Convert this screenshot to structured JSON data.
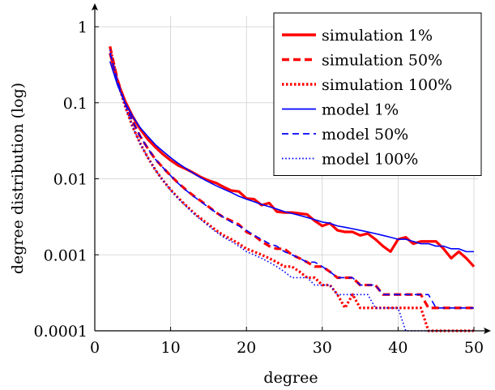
{
  "chart_data": {
    "type": "line",
    "xlabel": "degree",
    "ylabel": "degree distribution (log)",
    "xlim": [
      0,
      51
    ],
    "ylim": [
      0.0001,
      2
    ],
    "yscale": "log",
    "x_ticks": [
      0,
      10,
      20,
      30,
      40,
      50
    ],
    "y_ticks": [
      {
        "value": 1,
        "label": "1"
      },
      {
        "value": 0.1,
        "label": "0.1"
      },
      {
        "value": 0.01,
        "label": "0.01"
      },
      {
        "value": 0.001,
        "label": "0.001"
      },
      {
        "value": 0.0001,
        "label": "0.0001"
      }
    ],
    "grid": true,
    "legend_position": "top-right",
    "series": [
      {
        "name": "simulation 1%",
        "color": "#ff0000",
        "dash": "solid",
        "width": "thick",
        "x": [
          2,
          3,
          4,
          5,
          6,
          7,
          8,
          9,
          10,
          11,
          12,
          13,
          14,
          15,
          16,
          17,
          18,
          19,
          20,
          21,
          22,
          23,
          24,
          25,
          26,
          27,
          28,
          29,
          30,
          31,
          32,
          33,
          34,
          35,
          36,
          37,
          38,
          39,
          40,
          41,
          42,
          43,
          44,
          45,
          46,
          47,
          48,
          49,
          50
        ],
        "y": [
          0.45,
          0.19,
          0.105,
          0.066,
          0.045,
          0.033,
          0.026,
          0.021,
          0.0175,
          0.015,
          0.0135,
          0.012,
          0.0105,
          0.0095,
          0.0088,
          0.0078,
          0.007,
          0.0068,
          0.0055,
          0.0054,
          0.0045,
          0.0048,
          0.0037,
          0.0036,
          0.0036,
          0.0035,
          0.0034,
          0.0028,
          0.0024,
          0.0026,
          0.0021,
          0.002,
          0.002,
          0.0018,
          0.0019,
          0.0016,
          0.0013,
          0.0011,
          0.0016,
          0.0017,
          0.0014,
          0.0015,
          0.0015,
          0.0015,
          0.0012,
          0.0009,
          0.0011,
          0.0009,
          0.0007
        ]
      },
      {
        "name": "simulation 50%",
        "color": "#ff0000",
        "dash": "dashed",
        "width": "thick",
        "x": [
          2,
          3,
          4,
          5,
          6,
          7,
          8,
          9,
          10,
          11,
          12,
          13,
          14,
          15,
          16,
          17,
          18,
          19,
          20,
          21,
          22,
          23,
          24,
          25,
          26,
          27,
          28,
          29,
          30,
          31,
          32,
          33,
          34,
          35,
          36,
          37,
          38,
          39,
          40,
          41,
          42,
          43,
          44,
          45,
          46,
          47,
          48,
          49,
          50
        ],
        "y": [
          0.55,
          0.2,
          0.1,
          0.057,
          0.036,
          0.025,
          0.018,
          0.014,
          0.011,
          0.0088,
          0.0072,
          0.006,
          0.0051,
          0.0043,
          0.0036,
          0.0031,
          0.0028,
          0.0025,
          0.002,
          0.0018,
          0.0015,
          0.0013,
          0.0012,
          0.0012,
          0.001,
          0.0009,
          0.0008,
          0.0007,
          0.0007,
          0.0006,
          0.0005,
          0.0005,
          0.0005,
          0.0004,
          0.0004,
          0.0004,
          0.0003,
          0.0003,
          0.0003,
          0.0003,
          0.0003,
          0.0003,
          0.0002,
          0.0002,
          0.0002,
          0.0002,
          0.0002,
          0.0002,
          0.0002
        ]
      },
      {
        "name": "simulation 100%",
        "color": "#ff0000",
        "dash": "dotted",
        "width": "thick",
        "x": [
          2,
          3,
          4,
          5,
          6,
          7,
          8,
          9,
          10,
          11,
          12,
          13,
          14,
          15,
          16,
          17,
          18,
          19,
          20,
          21,
          22,
          23,
          24,
          25,
          26,
          27,
          28,
          29,
          30,
          31,
          32,
          33,
          34,
          35,
          36,
          37,
          38,
          39,
          40,
          41,
          42,
          43,
          44,
          45,
          46,
          47,
          48,
          49,
          50
        ],
        "y": [
          0.55,
          0.19,
          0.09,
          0.048,
          0.029,
          0.019,
          0.013,
          0.0095,
          0.0072,
          0.0056,
          0.0045,
          0.0036,
          0.003,
          0.0025,
          0.0021,
          0.0018,
          0.0016,
          0.0014,
          0.0012,
          0.0011,
          0.001,
          0.0009,
          0.0008,
          0.0007,
          0.0007,
          0.0006,
          0.0005,
          0.0005,
          0.0004,
          0.0004,
          0.0003,
          0.0002,
          0.0003,
          0.0002,
          0.0002,
          0.0002,
          0.0002,
          0.0002,
          0.0002,
          0.0002,
          0.0002,
          0.0002,
          0.0001,
          0.0001,
          0.0001,
          0.0001,
          0.0001,
          0.0001,
          0.0001
        ]
      },
      {
        "name": "model 1%",
        "color": "#0000ff",
        "dash": "solid",
        "width": "thin",
        "x": [
          2,
          3,
          4,
          5,
          6,
          7,
          8,
          9,
          10,
          11,
          12,
          13,
          14,
          15,
          16,
          17,
          18,
          19,
          20,
          21,
          22,
          23,
          24,
          25,
          26,
          27,
          28,
          29,
          30,
          31,
          32,
          33,
          34,
          35,
          36,
          37,
          38,
          39,
          40,
          41,
          42,
          43,
          44,
          45,
          46,
          47,
          48,
          49,
          50
        ],
        "y": [
          0.35,
          0.17,
          0.1,
          0.066,
          0.047,
          0.036,
          0.028,
          0.023,
          0.019,
          0.016,
          0.0137,
          0.0118,
          0.0103,
          0.0091,
          0.0081,
          0.0073,
          0.0066,
          0.0059,
          0.0054,
          0.005,
          0.0046,
          0.0043,
          0.004,
          0.0037,
          0.0035,
          0.0033,
          0.0031,
          0.0029,
          0.0027,
          0.0026,
          0.0024,
          0.0023,
          0.0022,
          0.0021,
          0.002,
          0.0019,
          0.0018,
          0.0017,
          0.0016,
          0.0016,
          0.0015,
          0.0014,
          0.0014,
          0.0013,
          0.0013,
          0.0012,
          0.0012,
          0.0011,
          0.0011
        ]
      },
      {
        "name": "model 50%",
        "color": "#0000ff",
        "dash": "dashed",
        "width": "thin",
        "x": [
          2,
          3,
          4,
          5,
          6,
          7,
          8,
          9,
          10,
          11,
          12,
          13,
          14,
          15,
          16,
          17,
          18,
          19,
          20,
          21,
          22,
          23,
          24,
          25,
          26,
          27,
          28,
          29,
          30,
          31,
          32,
          33,
          34,
          35,
          36,
          37,
          38,
          39,
          40,
          41,
          42,
          43,
          44,
          45,
          46,
          47,
          48,
          49,
          50
        ],
        "y": [
          0.45,
          0.19,
          0.1,
          0.057,
          0.036,
          0.025,
          0.018,
          0.014,
          0.011,
          0.0087,
          0.0071,
          0.0059,
          0.005,
          0.0042,
          0.0036,
          0.0031,
          0.0027,
          0.0024,
          0.0021,
          0.0018,
          0.0016,
          0.0014,
          0.0013,
          0.0011,
          0.001,
          0.0009,
          0.0008,
          0.0008,
          0.0007,
          0.0006,
          0.0005,
          0.0005,
          0.0005,
          0.0004,
          0.0004,
          0.0004,
          0.0003,
          0.0003,
          0.0003,
          0.0003,
          0.0003,
          0.0003,
          0.0003,
          0.0002,
          0.0002,
          0.0002,
          0.0002,
          0.0002,
          0.0002
        ]
      },
      {
        "name": "model 100%",
        "color": "#0000ff",
        "dash": "dotted",
        "width": "thin",
        "x": [
          2,
          3,
          4,
          5,
          6,
          7,
          8,
          9,
          10,
          11,
          12,
          13,
          14,
          15,
          16,
          17,
          18,
          19,
          20,
          21,
          22,
          23,
          24,
          25,
          26,
          27,
          28,
          29,
          30,
          31,
          32,
          33,
          34,
          35,
          36,
          37,
          38,
          39,
          40,
          41,
          42,
          43,
          44,
          45,
          46,
          47,
          48,
          49,
          50
        ],
        "y": [
          0.5,
          0.19,
          0.09,
          0.048,
          0.029,
          0.019,
          0.013,
          0.0095,
          0.0071,
          0.0055,
          0.0044,
          0.0035,
          0.0029,
          0.0024,
          0.002,
          0.0017,
          0.0015,
          0.0013,
          0.0011,
          0.001,
          0.0009,
          0.0008,
          0.0007,
          0.0006,
          0.0005,
          0.0005,
          0.0005,
          0.0004,
          0.0004,
          0.0004,
          0.0003,
          0.0003,
          0.0003,
          0.0003,
          0.0003,
          0.0002,
          0.0002,
          0.0002,
          0.0002,
          0.0001,
          0.0001,
          0.0001,
          0.0001,
          0.0001,
          0.0001,
          0.0001,
          0.0001,
          0.0001,
          0.0001
        ]
      }
    ]
  }
}
